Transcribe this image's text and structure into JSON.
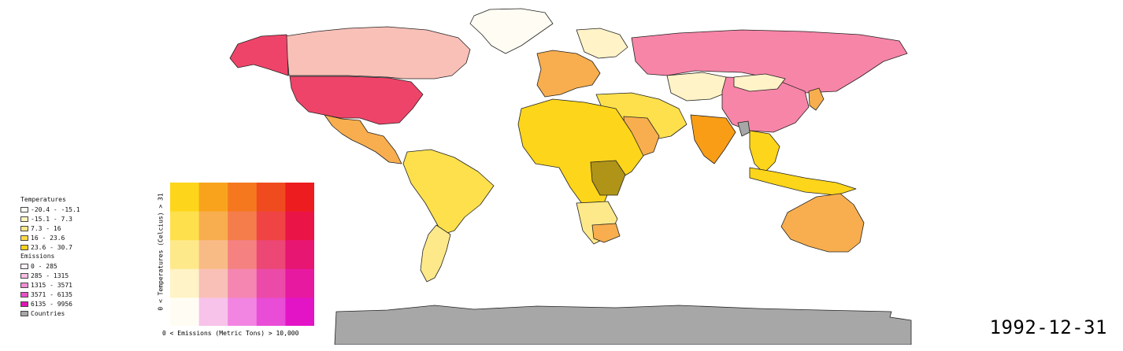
{
  "legend": {
    "temperatures_title": "Temperatures",
    "temperatures": [
      {
        "label": "-20.4 - -15.1",
        "color": "#fffdf0"
      },
      {
        "label": "-15.1 - 7.3",
        "color": "#fff3c2"
      },
      {
        "label": "7.3 - 16",
        "color": "#ffe68a"
      },
      {
        "label": "16 - 23.6",
        "color": "#ffd94a"
      },
      {
        "label": "23.6 - 30.7",
        "color": "#ffd21a"
      }
    ],
    "emissions_title": "Emissions",
    "emissions": [
      {
        "label": "0 - 285",
        "color": "#fdf0f8"
      },
      {
        "label": "285 - 1315",
        "color": "#f7bfe4"
      },
      {
        "label": "1315 - 3571",
        "color": "#f08ed2"
      },
      {
        "label": "3571 - 6135",
        "color": "#ea50c4"
      },
      {
        "label": "6135 - 9956",
        "color": "#e314b5"
      }
    ],
    "countries_label": "Countries",
    "countries_color": "#a7a7a7"
  },
  "matrix": {
    "y_label": "0 < Temperatures (Celcius) > 31",
    "x_label": "0 < Emissions (Metric Tons) > 10,000",
    "rows": [
      [
        "#fdd51a",
        "#f9a31d",
        "#f5781e",
        "#f04b1f",
        "#ed1c1e"
      ],
      [
        "#fde04c",
        "#f8ae4e",
        "#f57d4b",
        "#f04344",
        "#ea1447"
      ],
      [
        "#fee98a",
        "#f9bb86",
        "#f58181",
        "#ed4775",
        "#e71672"
      ],
      [
        "#fff3c7",
        "#f9c0b7",
        "#f486b1",
        "#ec4aa8",
        "#e719a0"
      ],
      [
        "#fffdf3",
        "#f7c3ea",
        "#f285e1",
        "#e94cd6",
        "#e314c6"
      ]
    ]
  },
  "map_colors": {
    "ocean": "#ffffff",
    "antarctica": "#a7a7a7",
    "greenland": "#fffdf3",
    "canada": "#f9c0b7",
    "usa": "#ef4469",
    "alaska": "#ef4469",
    "mexico_central": "#f8ae4e",
    "south_america": "#fde04c",
    "south_america_south": "#fee98a",
    "europe_west": "#f8ae4e",
    "europe_north": "#fff3c7",
    "russia": "#f785a8",
    "kazakhstan": "#fff3c7",
    "china": "#f785a8",
    "mongolia": "#fff3c7",
    "india": "#f99d16",
    "middle_east": "#fde04c",
    "saudi": "#f8ae4e",
    "africa": "#fdd51a",
    "africa_south": "#fee98a",
    "drc": "#b09417",
    "south_africa": "#f8ae4e",
    "southeast_asia": "#fdd51a",
    "japan": "#f8ae4e",
    "australia": "#f8ae4e",
    "indonesia": "#fdd51a",
    "grey_country": "#a7a7a7"
  },
  "date": "1992-12-31"
}
